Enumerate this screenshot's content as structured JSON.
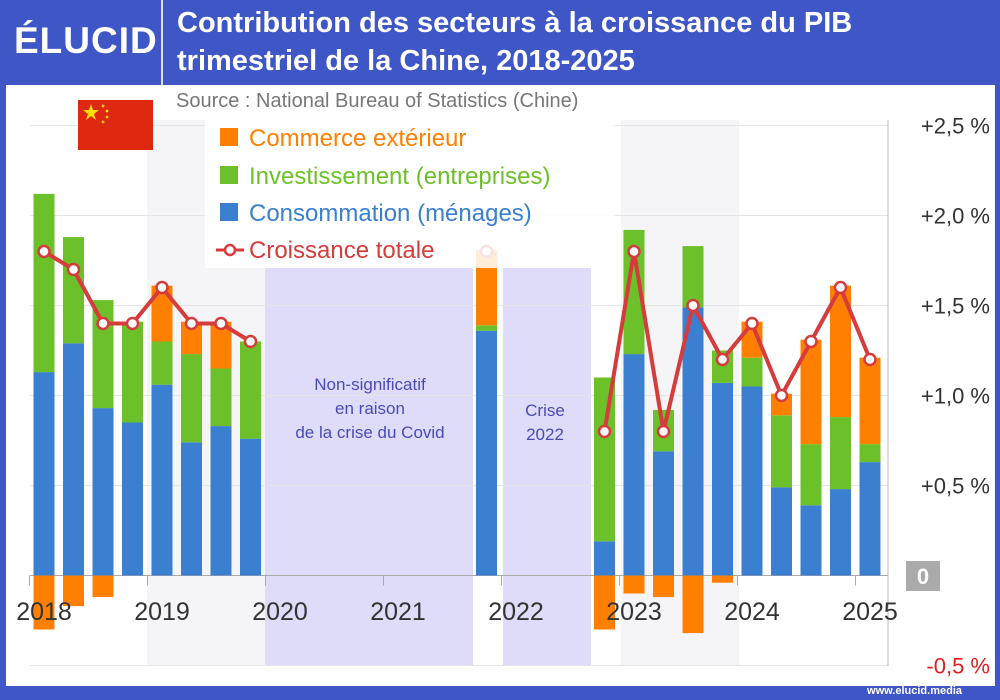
{
  "header": {
    "logo": "ÉLUCID",
    "title_line1": "Contribution des secteurs à la croissance du PIB",
    "title_line2": "trimestriel de la Chine, 2018-2025",
    "source": "Source : National Bureau of Statistics (Chine)"
  },
  "footer": {
    "url": "www.elucid.media"
  },
  "flag": "china-flag-icon",
  "colors": {
    "header": "#3f56c6",
    "commerce": "#ff8000",
    "investissement": "#6cc12a",
    "consommation": "#3a7fd0",
    "croissance": "#d63c3c",
    "annotation": "#4a4ab8",
    "shade": "#dedcf8"
  },
  "chart_data": {
    "type": "bar",
    "stacked": true,
    "y_axis_position": "right",
    "ylim": [
      -0.5,
      2.5
    ],
    "yticks": [
      "+2,5 %",
      "+2,0 %",
      "+1,5 %",
      "+1,0 %",
      "+0,5 %",
      "0",
      "-0,5 %"
    ],
    "ytick_values": [
      2.5,
      2.0,
      1.5,
      1.0,
      0.5,
      0,
      -0.5
    ],
    "xtick_labels": [
      "2018",
      "2019",
      "2020",
      "2021",
      "2022",
      "2023",
      "2024",
      "2025"
    ],
    "grid": true,
    "legend_position": "top-left",
    "series": [
      {
        "name": "Commerce extérieur",
        "kind": "bar",
        "values": [
          -0.3,
          -0.17,
          -0.12,
          0.0,
          0.31,
          0.18,
          0.26,
          0.0,
          null,
          null,
          null,
          null,
          null,
          null,
          null,
          0.42,
          null,
          null,
          null,
          -0.3,
          -0.1,
          -0.12,
          -0.32,
          -0.04,
          0.2,
          0.12,
          0.58,
          0.73,
          0.48
        ]
      },
      {
        "name": "Investissement (entreprises)",
        "kind": "bar",
        "values": [
          0.99,
          0.59,
          0.6,
          0.56,
          0.24,
          0.49,
          0.32,
          0.54,
          null,
          null,
          null,
          null,
          null,
          null,
          null,
          0.03,
          null,
          null,
          null,
          0.91,
          0.69,
          0.23,
          0.34,
          0.18,
          0.16,
          0.4,
          0.34,
          0.4,
          0.1
        ]
      },
      {
        "name": "Consommation (ménages)",
        "kind": "bar",
        "values": [
          1.13,
          1.29,
          0.93,
          0.85,
          1.06,
          0.74,
          0.83,
          0.76,
          null,
          null,
          null,
          null,
          null,
          null,
          null,
          1.36,
          null,
          null,
          null,
          0.19,
          1.23,
          0.69,
          1.49,
          1.07,
          1.05,
          0.49,
          0.39,
          0.48,
          0.63
        ]
      },
      {
        "name": "Croissance totale",
        "kind": "line",
        "values": [
          1.8,
          1.7,
          1.4,
          1.4,
          1.6,
          1.4,
          1.4,
          1.3,
          null,
          null,
          null,
          null,
          null,
          null,
          null,
          1.8,
          null,
          null,
          null,
          0.8,
          1.8,
          0.8,
          1.5,
          1.2,
          1.4,
          1.0,
          1.3,
          1.6,
          1.2
        ]
      }
    ],
    "annotations": [
      {
        "lines": [
          "Non-significatif",
          "en raison",
          "de la crise du Covid"
        ]
      },
      {
        "lines": [
          "Crise",
          "2022"
        ]
      }
    ]
  }
}
